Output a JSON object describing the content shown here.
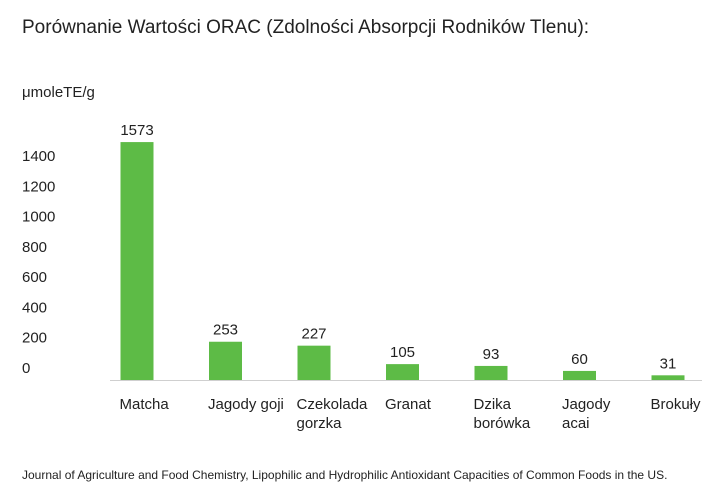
{
  "chart_data": {
    "type": "bar",
    "title": "Porównanie Wartości ORAC (Zdolności Absorpcji Rodników Tlenu):",
    "y_label": "μmoleTE/g",
    "categories": [
      "Matcha",
      "Jagody goji",
      "Czekolada gorzka",
      "Granat",
      "Dzika borówka",
      "Jagody acai",
      "Brokuły"
    ],
    "values": [
      1573,
      253,
      227,
      105,
      93,
      60,
      31
    ],
    "color": "#5dbb46",
    "ylim": [
      0,
      1600
    ],
    "yticks": [
      0,
      200,
      400,
      600,
      800,
      1000,
      1200,
      1400
    ],
    "grid": false,
    "source": "Journal of Agriculture and Food Chemistry, Lipophilic and Hydrophilic Antioxidant Capacities of Common Foods in the US."
  }
}
